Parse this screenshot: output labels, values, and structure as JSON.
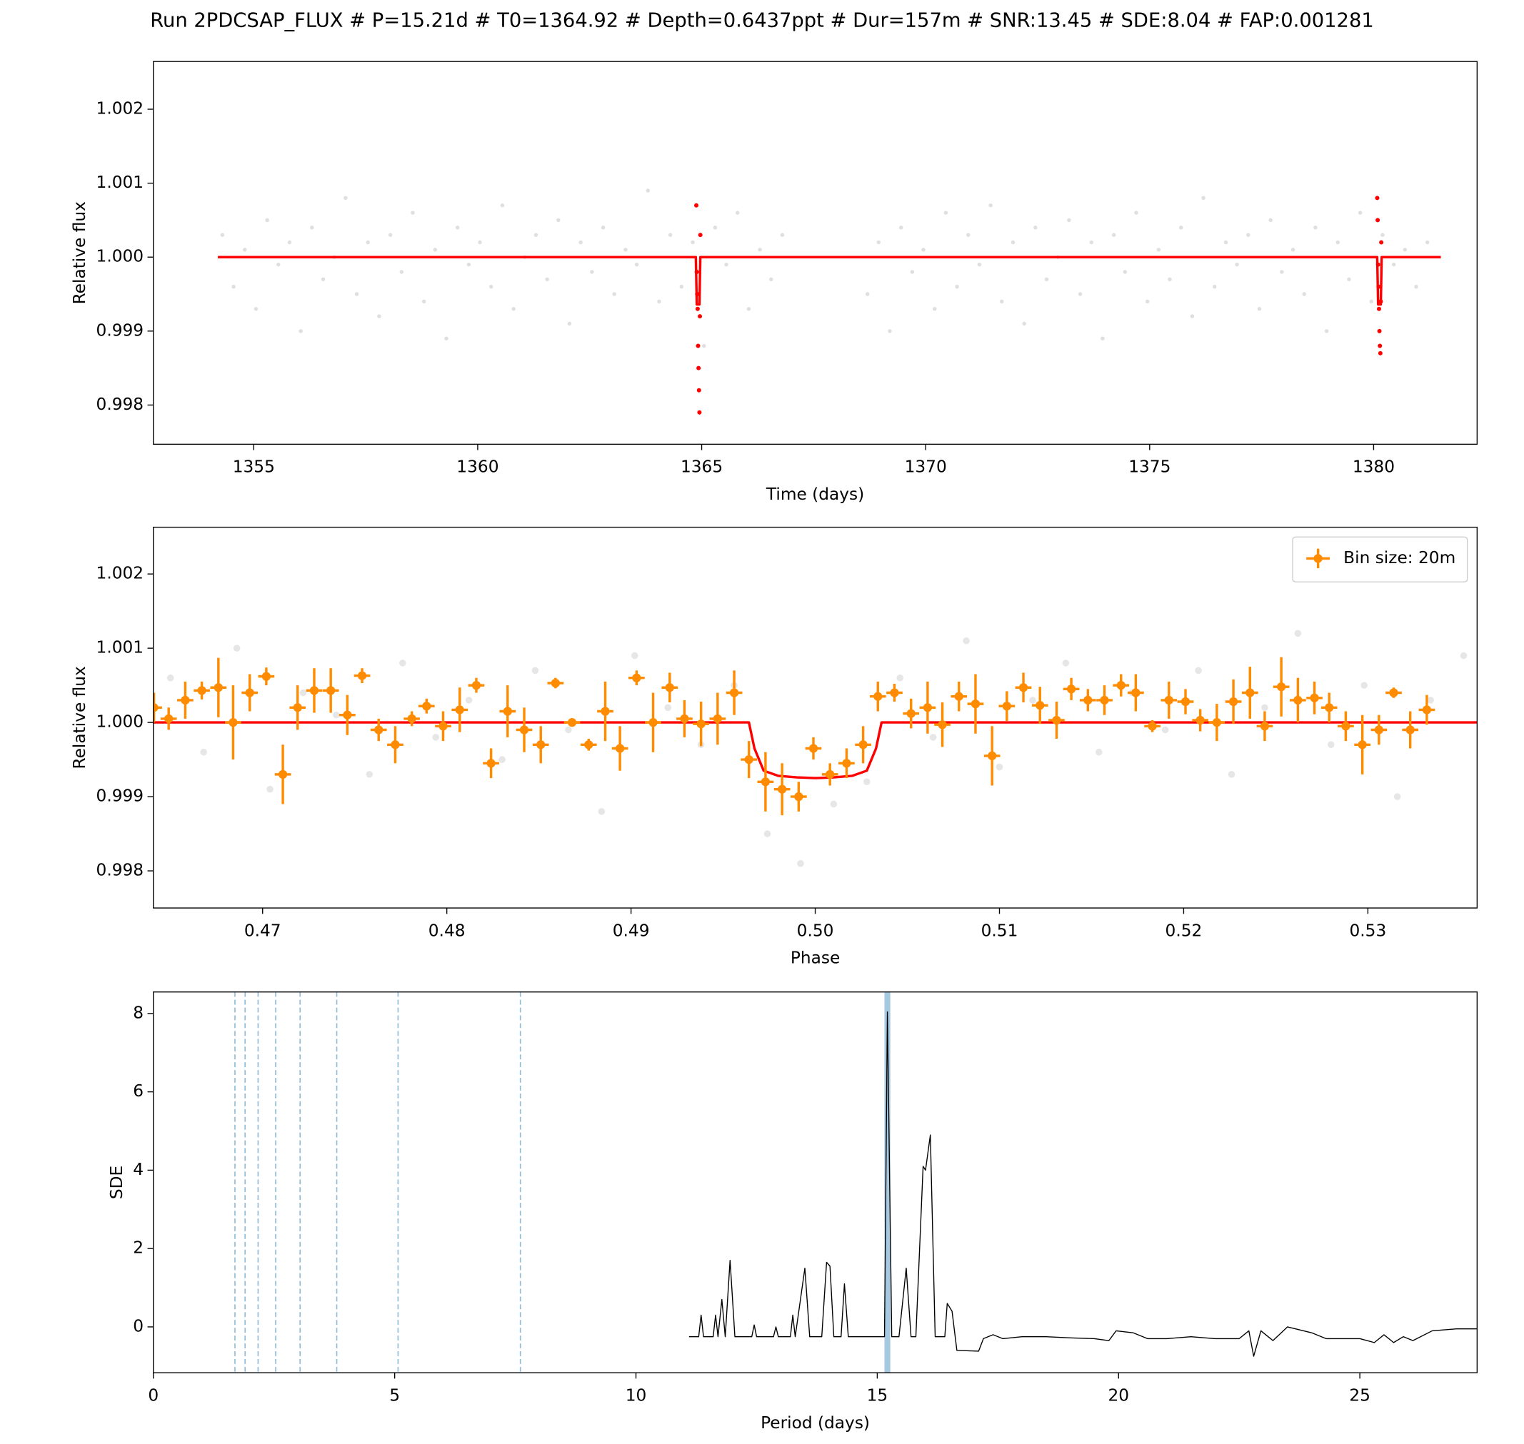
{
  "chart_data": [
    {
      "type": "scatter",
      "title": "Run 2PDCSAP_FLUX # P=15.21d # T0=1364.92 # Depth=0.6437ppt # Dur=157m # SNR:13.45 # SDE:8.04 # FAP:0.001281",
      "xlabel": "Time (days)",
      "ylabel": "Relative flux",
      "xlim": [
        1352.76,
        1382.31
      ],
      "ylim": [
        0.99747,
        1.002645
      ],
      "xticks": [
        1355,
        1360,
        1365,
        1370,
        1375,
        1380
      ],
      "yticks": [
        0.998,
        0.999,
        {
          "value": 1.0,
          "label": "1.000"
        },
        1.001,
        1.002
      ],
      "series": [
        {
          "kind": "scatter",
          "color": "#808080",
          "alpha": 0.25,
          "size": 2,
          "x": [
            1354.3,
            1354.55,
            1354.8,
            1355.05,
            1355.3,
            1355.55,
            1355.8,
            1356.05,
            1356.3,
            1356.55,
            1356.8,
            1357.05,
            1357.3,
            1357.55,
            1357.8,
            1358.05,
            1358.3,
            1358.55,
            1358.8,
            1359.05,
            1359.3,
            1359.55,
            1359.8,
            1360.05,
            1360.3,
            1360.55,
            1360.8,
            1361.05,
            1361.3,
            1361.55,
            1361.8,
            1362.05,
            1362.3,
            1362.55,
            1362.8,
            1363.05,
            1363.3,
            1363.55,
            1363.8,
            1364.05,
            1364.3,
            1364.55,
            1364.8,
            1365.05,
            1365.3,
            1365.55,
            1365.8,
            1366.05,
            1366.3,
            1366.55,
            1366.8,
            1368.7,
            1368.95,
            1369.2,
            1369.45,
            1369.7,
            1369.95,
            1370.2,
            1370.45,
            1370.7,
            1370.95,
            1371.2,
            1371.45,
            1371.7,
            1371.95,
            1372.2,
            1372.45,
            1372.7,
            1372.95,
            1373.2,
            1373.45,
            1373.7,
            1373.95,
            1374.2,
            1374.45,
            1374.7,
            1374.95,
            1375.2,
            1375.45,
            1375.7,
            1375.95,
            1376.2,
            1376.45,
            1376.7,
            1376.95,
            1377.2,
            1377.45,
            1377.7,
            1377.95,
            1378.2,
            1378.45,
            1378.7,
            1378.95,
            1379.2,
            1379.45,
            1379.7,
            1379.95,
            1380.2,
            1380.45,
            1380.7,
            1380.95,
            1381.2
          ],
          "values": [
            1.0003,
            0.9996,
            1.0001,
            0.9993,
            1.0005,
            0.9999,
            1.0002,
            0.999,
            1.0004,
            0.9997,
            1.0,
            1.0008,
            0.9995,
            1.0002,
            0.9992,
            1.0003,
            0.9998,
            1.0006,
            0.9994,
            1.0001,
            0.9989,
            1.0004,
            0.9999,
            1.0002,
            0.9996,
            1.0007,
            0.9993,
            1.0,
            1.0003,
            0.9997,
            1.0005,
            0.9991,
            1.0002,
            0.9998,
            1.0004,
            0.9995,
            1.0001,
            0.9999,
            1.0009,
            0.9994,
            1.0003,
            0.9996,
            1.0002,
            0.9988,
            1.0004,
            0.9999,
            1.0006,
            0.9993,
            1.0001,
            0.9997,
            1.0003,
            0.9995,
            1.0002,
            0.999,
            1.0004,
            0.9998,
            1.0001,
            0.9993,
            1.0006,
            0.9996,
            1.0003,
            0.9999,
            1.0007,
            0.9994,
            1.0002,
            0.9991,
            1.0004,
            0.9997,
            1.0,
            1.0005,
            0.9995,
            1.0002,
            0.9989,
            1.0003,
            0.9998,
            1.0006,
            0.9994,
            1.0001,
            0.9997,
            1.0004,
            0.9992,
            1.0008,
            0.9996,
            1.0002,
            0.9999,
            1.0003,
            0.9993,
            1.0005,
            0.9998,
            1.0001,
            0.9995,
            1.0004,
            0.999,
            1.0002,
            0.9997,
            1.0006,
            0.9994,
            1.0003,
            0.9999,
            1.0001,
            0.9996,
            1.0002
          ]
        },
        {
          "kind": "scatter",
          "color": "#ff0000",
          "alpha": 1,
          "size": 2.2,
          "x": [
            1364.88,
            1364.89,
            1364.9,
            1364.91,
            1364.92,
            1364.93,
            1364.94,
            1364.95,
            1364.96,
            1364.97,
            1380.08,
            1380.09,
            1380.1,
            1380.11,
            1380.12,
            1380.13,
            1380.14,
            1380.15,
            1380.16,
            1380.17
          ],
          "values": [
            1.0007,
            0.9998,
            0.9995,
            0.9993,
            0.9988,
            0.9985,
            0.9982,
            0.9979,
            0.9992,
            1.0003,
            1.0008,
            1.0005,
            0.9999,
            0.9996,
            0.9993,
            0.999,
            0.9988,
            0.9987,
            0.9994,
            1.0002
          ]
        },
        {
          "kind": "line",
          "color": "#ff0000",
          "width": 2.5,
          "x": [
            1354.2,
            1364.87,
            1364.89,
            1364.95,
            1364.97,
            1380.08,
            1380.1,
            1380.16,
            1380.18,
            1381.5
          ],
          "values": [
            1.0,
            1.0,
            0.99936,
            0.99936,
            1.0,
            1.0,
            0.99936,
            0.99936,
            1.0,
            1.0
          ]
        }
      ]
    },
    {
      "type": "scatter",
      "xlabel": "Phase",
      "ylabel": "Relative flux",
      "xlim": [
        0.46407,
        0.53593
      ],
      "ylim": [
        0.9975,
        1.00263
      ],
      "xticks": [
        0.47,
        0.48,
        0.49,
        {
          "value": 0.5,
          "label": "0.50"
        },
        0.51,
        0.52,
        0.53
      ],
      "yticks": [
        0.998,
        0.999,
        {
          "value": 1.0,
          "label": "1.000"
        },
        1.001,
        1.002
      ],
      "legend": "upper right",
      "series": [
        {
          "kind": "scatter",
          "color": "#808080",
          "alpha": 0.2,
          "size": 3.5,
          "x": [
            0.465,
            0.4668,
            0.4686,
            0.4704,
            0.4722,
            0.474,
            0.4758,
            0.4776,
            0.4794,
            0.4812,
            0.483,
            0.4848,
            0.4866,
            0.4884,
            0.4902,
            0.492,
            0.4938,
            0.4956,
            0.4974,
            0.4992,
            0.501,
            0.5028,
            0.5046,
            0.5064,
            0.5082,
            0.51,
            0.5118,
            0.5136,
            0.5154,
            0.5172,
            0.519,
            0.5208,
            0.5226,
            0.5244,
            0.5262,
            0.528,
            0.5298,
            0.5316,
            0.5334,
            0.5352
          ],
          "values": [
            1.0006,
            0.9996,
            1.001,
            0.9991,
            1.0004,
            1.0001,
            0.9993,
            1.0008,
            0.9998,
            1.0003,
            0.9995,
            1.0007,
            0.9999,
            0.9988,
            1.0009,
            1.0002,
            0.9997,
            1.0005,
            0.9985,
            0.9981,
            0.9989,
            0.9992,
            1.0006,
            0.9998,
            1.0011,
            0.9994,
            1.0003,
            1.0008,
            0.9996,
            1.0004,
            0.9999,
            1.0007,
            0.9993,
            1.0002,
            1.0012,
            0.9997,
            1.0005,
            0.999,
            1.0003,
            1.0009
          ]
        },
        {
          "kind": "line",
          "color": "#ff0000",
          "width": 2.5,
          "x": [
            0.46407,
            0.4964,
            0.4967,
            0.4972,
            0.498,
            0.499,
            0.5,
            0.501,
            0.502,
            0.5028,
            0.5033,
            0.5036,
            0.53593
          ],
          "values": [
            1.0,
            1.0,
            0.99965,
            0.99935,
            0.99928,
            0.99926,
            0.99925,
            0.99926,
            0.99928,
            0.99935,
            0.99965,
            1.0,
            1.0
          ]
        },
        {
          "kind": "errorbar",
          "name": "Bin size: 20m",
          "color": "#ff8c00",
          "size": 4.5,
          "xerr": 0.00044,
          "x": [
            0.4641,
            0.4649,
            0.4658,
            0.4667,
            0.4676,
            0.4684,
            0.4693,
            0.4702,
            0.4711,
            0.4719,
            0.4728,
            0.4737,
            0.4746,
            0.4754,
            0.4763,
            0.4772,
            0.4781,
            0.4789,
            0.4798,
            0.4807,
            0.4816,
            0.4824,
            0.4833,
            0.4842,
            0.4851,
            0.4859,
            0.4868,
            0.4877,
            0.4886,
            0.4894,
            0.4903,
            0.4912,
            0.4921,
            0.4929,
            0.4938,
            0.4947,
            0.4956,
            0.4964,
            0.4973,
            0.4982,
            0.4991,
            0.4999,
            0.5008,
            0.5017,
            0.5026,
            0.5034,
            0.5043,
            0.5052,
            0.5061,
            0.5069,
            0.5078,
            0.5087,
            0.5096,
            0.5104,
            0.5113,
            0.5122,
            0.5131,
            0.5139,
            0.5148,
            0.5157,
            0.5166,
            0.5174,
            0.5183,
            0.5192,
            0.5201,
            0.5209,
            0.5218,
            0.5227,
            0.5236,
            0.5244,
            0.5253,
            0.5262,
            0.5271,
            0.5279,
            0.5288,
            0.5297,
            0.5306,
            0.5314,
            0.5323,
            0.5332
          ],
          "values": [
            1.0002,
            1.00005,
            1.0003,
            1.00043,
            1.00047,
            1.0,
            1.0004,
            1.00062,
            0.9993,
            1.0002,
            1.00043,
            1.00043,
            1.0001,
            1.00063,
            0.9999,
            0.9997,
            1.00005,
            1.00022,
            0.99995,
            1.00017,
            1.0005,
            0.99945,
            1.00015,
            0.9999,
            0.9997,
            1.00053,
            1.0,
            0.9997,
            1.00015,
            0.99965,
            1.0006,
            1.0,
            1.00047,
            1.00005,
            0.99998,
            1.00005,
            1.0004,
            0.9995,
            0.9992,
            0.9991,
            0.999,
            0.99965,
            0.9993,
            0.99945,
            0.9997,
            1.00035,
            1.0004,
            1.00012,
            1.0002,
            0.99997,
            1.00035,
            1.00025,
            0.99955,
            1.00022,
            1.00047,
            1.00023,
            1.00003,
            1.00045,
            1.0003,
            1.0003,
            1.0005,
            1.0004,
            0.99995,
            1.0003,
            1.00028,
            1.00003,
            1.0,
            1.00028,
            1.0004,
            0.99995,
            1.00048,
            1.0003,
            1.00033,
            1.0002,
            0.99995,
            0.9997,
            0.9999,
            1.0004,
            0.9999,
            1.00017
          ],
          "errors": [
            0.0002,
            0.00015,
            0.00025,
            0.00012,
            0.0004,
            0.0005,
            0.00025,
            0.00012,
            0.0004,
            0.0003,
            0.0003,
            0.0003,
            0.00027,
            0.0001,
            0.00015,
            0.00025,
            0.0001,
            0.0001,
            0.0002,
            0.0003,
            0.0001,
            0.0002,
            0.00035,
            0.0003,
            0.00025,
            7e-05,
            5e-05,
            8e-05,
            0.0004,
            0.0003,
            0.0001,
            0.0004,
            0.0002,
            0.00025,
            0.0003,
            0.00035,
            0.0003,
            0.00025,
            0.0004,
            0.00035,
            0.0002,
            0.00015,
            0.00015,
            0.0002,
            0.00025,
            0.0002,
            0.00012,
            0.0002,
            0.00035,
            0.0003,
            0.0002,
            0.0004,
            0.0004,
            0.0002,
            0.0002,
            0.00025,
            0.00025,
            0.00015,
            0.00015,
            0.0002,
            0.00015,
            0.00025,
            8e-05,
            0.00025,
            0.00017,
            0.00015,
            0.00025,
            0.0003,
            0.00035,
            0.0002,
            0.0004,
            0.0003,
            0.00022,
            0.0002,
            0.0002,
            0.0004,
            0.0002,
            7e-05,
            0.00025,
            0.0002
          ]
        }
      ]
    },
    {
      "type": "line",
      "xlabel": "Period (days)",
      "ylabel": "SDE",
      "xlim": [
        0,
        27.43
      ],
      "ylim": [
        -1.17,
        8.55
      ],
      "xticks": [
        0,
        5,
        10,
        15,
        20,
        25
      ],
      "yticks": [
        0,
        2,
        4,
        6,
        8
      ],
      "vlines": [
        1.69,
        1.9,
        2.17,
        2.535,
        3.04,
        3.8,
        5.07,
        7.605
      ],
      "vline_color": "#1f77b4",
      "highlight": 15.21,
      "highlight_color": "#1f77b4",
      "series": [
        {
          "kind": "line",
          "color": "#000000",
          "width": 1,
          "x": [
            11.1,
            11.3,
            11.35,
            11.4,
            11.6,
            11.65,
            11.7,
            11.78,
            11.85,
            11.95,
            12.05,
            12.4,
            12.45,
            12.5,
            12.85,
            12.9,
            12.95,
            13.2,
            13.25,
            13.3,
            13.5,
            13.6,
            13.85,
            13.95,
            14.02,
            14.1,
            14.25,
            14.32,
            14.4,
            15.15,
            15.21,
            15.3,
            15.45,
            15.6,
            15.7,
            15.8,
            15.95,
            16.0,
            16.1,
            16.2,
            16.4,
            16.45,
            16.55,
            16.65,
            17.1,
            17.2,
            17.4,
            17.6,
            18.0,
            18.5,
            19.0,
            19.5,
            19.8,
            19.95,
            20.3,
            20.6,
            21.0,
            21.5,
            22.0,
            22.5,
            22.7,
            22.8,
            22.95,
            23.2,
            23.5,
            24.0,
            24.3,
            24.7,
            25.0,
            25.3,
            25.5,
            25.7,
            25.9,
            26.1,
            26.5,
            27.0,
            27.43
          ],
          "values": [
            -0.25,
            -0.25,
            0.3,
            -0.25,
            -0.25,
            0.3,
            -0.25,
            0.7,
            -0.25,
            1.7,
            -0.25,
            -0.25,
            0.05,
            -0.25,
            -0.25,
            0.0,
            -0.25,
            -0.25,
            0.3,
            -0.25,
            1.5,
            -0.25,
            -0.25,
            1.65,
            1.55,
            -0.25,
            -0.25,
            1.1,
            -0.25,
            -0.25,
            8.04,
            -0.25,
            -0.25,
            1.5,
            -0.25,
            -0.25,
            4.1,
            4.0,
            4.9,
            -0.25,
            -0.25,
            0.6,
            0.4,
            -0.6,
            -0.62,
            -0.3,
            -0.2,
            -0.3,
            -0.25,
            -0.25,
            -0.28,
            -0.3,
            -0.35,
            -0.1,
            -0.15,
            -0.3,
            -0.3,
            -0.25,
            -0.3,
            -0.3,
            -0.1,
            -0.75,
            -0.1,
            -0.35,
            0.0,
            -0.15,
            -0.3,
            -0.3,
            -0.3,
            -0.4,
            -0.2,
            -0.4,
            -0.25,
            -0.35,
            -0.1,
            -0.05,
            -0.05
          ]
        }
      ]
    }
  ]
}
